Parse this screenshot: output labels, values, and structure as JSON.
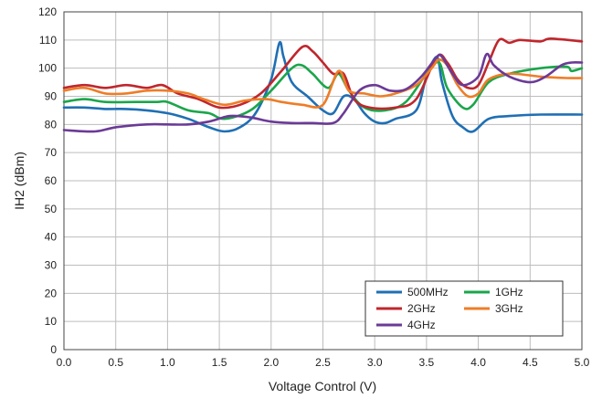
{
  "chart_data": {
    "type": "line",
    "xlabel": "Voltage Control (V)",
    "ylabel": "IH2 (dBm)",
    "xlim": [
      0.0,
      5.0
    ],
    "ylim": [
      0,
      120
    ],
    "x_ticks": [
      "0.0",
      "0.5",
      "1.0",
      "1.5",
      "2.0",
      "2.5",
      "3.0",
      "3.5",
      "4.0",
      "4.5",
      "5.0"
    ],
    "y_ticks": [
      "0",
      "10",
      "20",
      "30",
      "40",
      "50",
      "60",
      "70",
      "80",
      "90",
      "100",
      "110",
      "120"
    ],
    "grid": true,
    "legend_position": "bottom-right",
    "series": [
      {
        "name": "500MHz",
        "color": "#1f6fb4",
        "points": [
          [
            0,
            86
          ],
          [
            0.2,
            86
          ],
          [
            0.4,
            85.5
          ],
          [
            0.6,
            85.5
          ],
          [
            0.8,
            85
          ],
          [
            1.0,
            84
          ],
          [
            1.2,
            82
          ],
          [
            1.4,
            79
          ],
          [
            1.55,
            77.5
          ],
          [
            1.7,
            79
          ],
          [
            1.85,
            84
          ],
          [
            2.0,
            96
          ],
          [
            2.08,
            109
          ],
          [
            2.12,
            104
          ],
          [
            2.2,
            95
          ],
          [
            2.35,
            90
          ],
          [
            2.5,
            85
          ],
          [
            2.6,
            84
          ],
          [
            2.7,
            90
          ],
          [
            2.8,
            89
          ],
          [
            2.9,
            84
          ],
          [
            3.0,
            81
          ],
          [
            3.1,
            80.5
          ],
          [
            3.2,
            82
          ],
          [
            3.4,
            85
          ],
          [
            3.5,
            97
          ],
          [
            3.6,
            104
          ],
          [
            3.65,
            95
          ],
          [
            3.75,
            83
          ],
          [
            3.85,
            79
          ],
          [
            3.95,
            77.5
          ],
          [
            4.1,
            82
          ],
          [
            4.3,
            83
          ],
          [
            4.6,
            83.5
          ],
          [
            5.0,
            83.5
          ]
        ]
      },
      {
        "name": "1GHz",
        "color": "#1aa64b",
        "points": [
          [
            0,
            88
          ],
          [
            0.2,
            89
          ],
          [
            0.4,
            88
          ],
          [
            0.7,
            88
          ],
          [
            0.9,
            88
          ],
          [
            1.0,
            88
          ],
          [
            1.2,
            85
          ],
          [
            1.4,
            84
          ],
          [
            1.55,
            82
          ],
          [
            1.8,
            85
          ],
          [
            2.0,
            92
          ],
          [
            2.2,
            100
          ],
          [
            2.3,
            101
          ],
          [
            2.4,
            98
          ],
          [
            2.55,
            93
          ],
          [
            2.65,
            98
          ],
          [
            2.75,
            92
          ],
          [
            2.9,
            86
          ],
          [
            3.1,
            85
          ],
          [
            3.3,
            88
          ],
          [
            3.5,
            98
          ],
          [
            3.62,
            102
          ],
          [
            3.7,
            93
          ],
          [
            3.85,
            86
          ],
          [
            3.95,
            87
          ],
          [
            4.1,
            95
          ],
          [
            4.3,
            98
          ],
          [
            4.6,
            100
          ],
          [
            4.85,
            100.5
          ],
          [
            4.9,
            99
          ],
          [
            5.0,
            100
          ]
        ]
      },
      {
        "name": "2GHz",
        "color": "#c0262d",
        "points": [
          [
            0,
            93
          ],
          [
            0.2,
            94
          ],
          [
            0.4,
            93
          ],
          [
            0.6,
            94
          ],
          [
            0.8,
            93
          ],
          [
            0.95,
            94
          ],
          [
            1.1,
            91
          ],
          [
            1.3,
            89
          ],
          [
            1.5,
            86
          ],
          [
            1.7,
            87
          ],
          [
            1.9,
            91
          ],
          [
            2.1,
            99
          ],
          [
            2.3,
            107.5
          ],
          [
            2.4,
            106
          ],
          [
            2.5,
            102
          ],
          [
            2.6,
            98
          ],
          [
            2.7,
            98
          ],
          [
            2.8,
            89
          ],
          [
            2.95,
            86
          ],
          [
            3.2,
            86
          ],
          [
            3.4,
            89
          ],
          [
            3.6,
            104
          ],
          [
            3.7,
            102
          ],
          [
            3.8,
            96
          ],
          [
            3.9,
            93
          ],
          [
            4.0,
            94
          ],
          [
            4.1,
            102
          ],
          [
            4.2,
            110
          ],
          [
            4.3,
            109
          ],
          [
            4.4,
            110
          ],
          [
            4.6,
            109.5
          ],
          [
            4.7,
            110.5
          ],
          [
            5.0,
            109.5
          ]
        ]
      },
      {
        "name": "3GHz",
        "color": "#ee7d27",
        "points": [
          [
            0,
            92
          ],
          [
            0.2,
            93
          ],
          [
            0.4,
            91
          ],
          [
            0.6,
            91
          ],
          [
            0.8,
            92
          ],
          [
            1.0,
            92
          ],
          [
            1.2,
            91
          ],
          [
            1.35,
            89
          ],
          [
            1.55,
            87
          ],
          [
            1.75,
            88.5
          ],
          [
            1.95,
            89
          ],
          [
            2.1,
            88
          ],
          [
            2.3,
            87
          ],
          [
            2.5,
            87
          ],
          [
            2.65,
            99
          ],
          [
            2.75,
            92
          ],
          [
            2.9,
            91
          ],
          [
            3.05,
            90
          ],
          [
            3.2,
            91
          ],
          [
            3.4,
            94
          ],
          [
            3.55,
            100
          ],
          [
            3.62,
            103
          ],
          [
            3.7,
            101
          ],
          [
            3.8,
            94
          ],
          [
            3.9,
            90
          ],
          [
            4.0,
            91
          ],
          [
            4.1,
            96
          ],
          [
            4.3,
            98
          ],
          [
            4.6,
            97
          ],
          [
            4.85,
            96.5
          ],
          [
            5.0,
            96.5
          ]
        ]
      },
      {
        "name": "4GHz",
        "color": "#6b3a96",
        "points": [
          [
            0,
            78
          ],
          [
            0.3,
            77.5
          ],
          [
            0.5,
            79
          ],
          [
            0.8,
            80
          ],
          [
            1.0,
            80
          ],
          [
            1.2,
            80
          ],
          [
            1.4,
            81
          ],
          [
            1.6,
            83
          ],
          [
            1.8,
            82.5
          ],
          [
            2.0,
            81
          ],
          [
            2.2,
            80.5
          ],
          [
            2.4,
            80.5
          ],
          [
            2.6,
            80.5
          ],
          [
            2.7,
            84
          ],
          [
            2.85,
            92
          ],
          [
            3.0,
            94
          ],
          [
            3.15,
            92
          ],
          [
            3.3,
            92.5
          ],
          [
            3.45,
            97
          ],
          [
            3.6,
            104
          ],
          [
            3.65,
            104
          ],
          [
            3.75,
            98
          ],
          [
            3.85,
            94
          ],
          [
            4.0,
            97
          ],
          [
            4.08,
            105
          ],
          [
            4.15,
            101
          ],
          [
            4.3,
            97
          ],
          [
            4.5,
            95
          ],
          [
            4.65,
            97
          ],
          [
            4.8,
            101
          ],
          [
            4.9,
            102
          ],
          [
            5.0,
            102
          ]
        ]
      }
    ]
  }
}
